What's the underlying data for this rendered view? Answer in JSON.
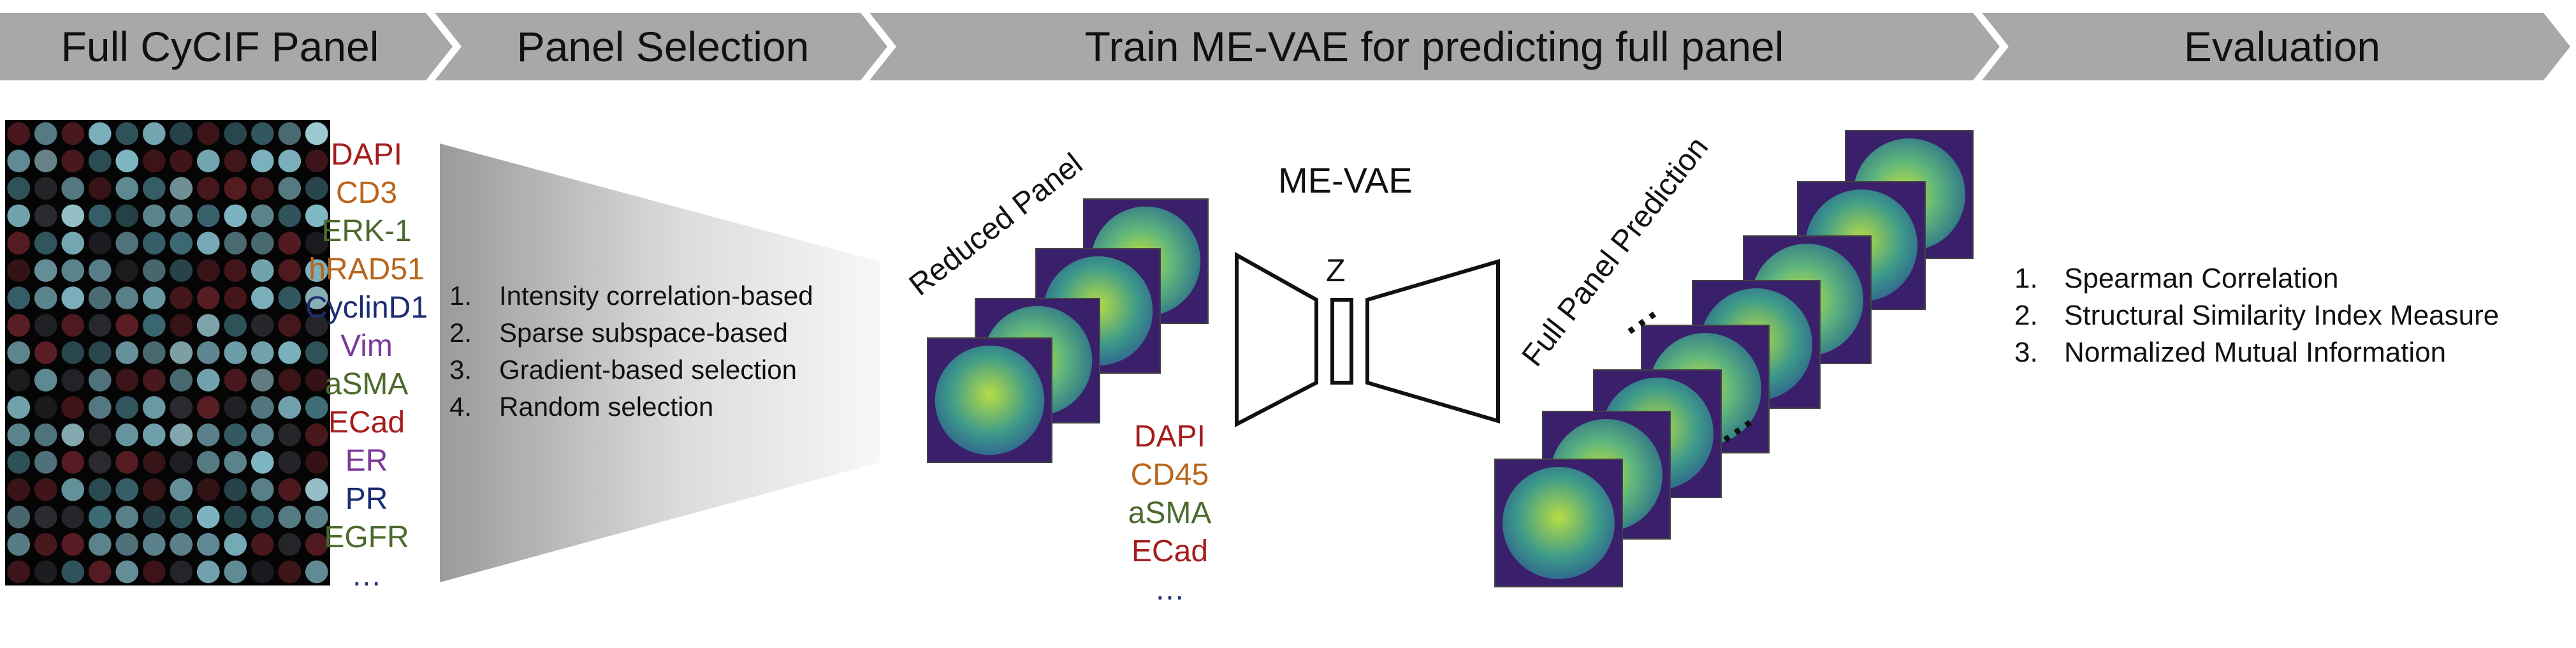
{
  "banner": {
    "steps": [
      {
        "label": "Full CyCIF Panel"
      },
      {
        "label": "Panel Selection"
      },
      {
        "label": "Train ME-VAE for predicting full panel"
      },
      {
        "label": "Evaluation"
      }
    ],
    "color": "#a8a8a8"
  },
  "full_panel": {
    "markers": [
      {
        "label": "DAPI",
        "color": "#a51d1d"
      },
      {
        "label": "CD3",
        "color": "#b8651c"
      },
      {
        "label": "ERK-1",
        "color": "#4c6a2e"
      },
      {
        "label": "hRAD51",
        "color": "#b8651c"
      },
      {
        "label": "CyclinD1",
        "color": "#1d2d73"
      },
      {
        "label": "Vim",
        "color": "#7a3a9a"
      },
      {
        "label": "aSMA",
        "color": "#4c6a2e"
      },
      {
        "label": "ECad",
        "color": "#a51d1d"
      },
      {
        "label": "ER",
        "color": "#7a3a9a"
      },
      {
        "label": "PR",
        "color": "#1d2d73"
      },
      {
        "label": "EGFR",
        "color": "#4c6a2e"
      },
      {
        "label": "…",
        "color": "#1d2d73"
      }
    ]
  },
  "panel_selection": {
    "methods": [
      {
        "num": "1.",
        "label": "Intensity correlation-based"
      },
      {
        "num": "2.",
        "label": "Sparse subspace-based"
      },
      {
        "num": "3.",
        "label": "Gradient-based selection"
      },
      {
        "num": "4.",
        "label": "Random selection"
      }
    ]
  },
  "training": {
    "reduced_panel_label": "Reduced Panel",
    "model_label": "ME-VAE",
    "latent_label": "Z",
    "prediction_label": "Full Panel Prediction",
    "reduced_markers": [
      {
        "label": "DAPI",
        "color": "#a51d1d"
      },
      {
        "label": "CD45",
        "color": "#b8651c"
      },
      {
        "label": "aSMA",
        "color": "#4c6a2e"
      },
      {
        "label": "ECad",
        "color": "#a51d1d"
      },
      {
        "label": "…",
        "color": "#1d2d73"
      }
    ]
  },
  "evaluation": {
    "metrics": [
      {
        "num": "1.",
        "label": "Spearman Correlation"
      },
      {
        "num": "2.",
        "label": "Structural Similarity Index Measure"
      },
      {
        "num": "3.",
        "label": "Normalized Mutual Information"
      }
    ]
  }
}
